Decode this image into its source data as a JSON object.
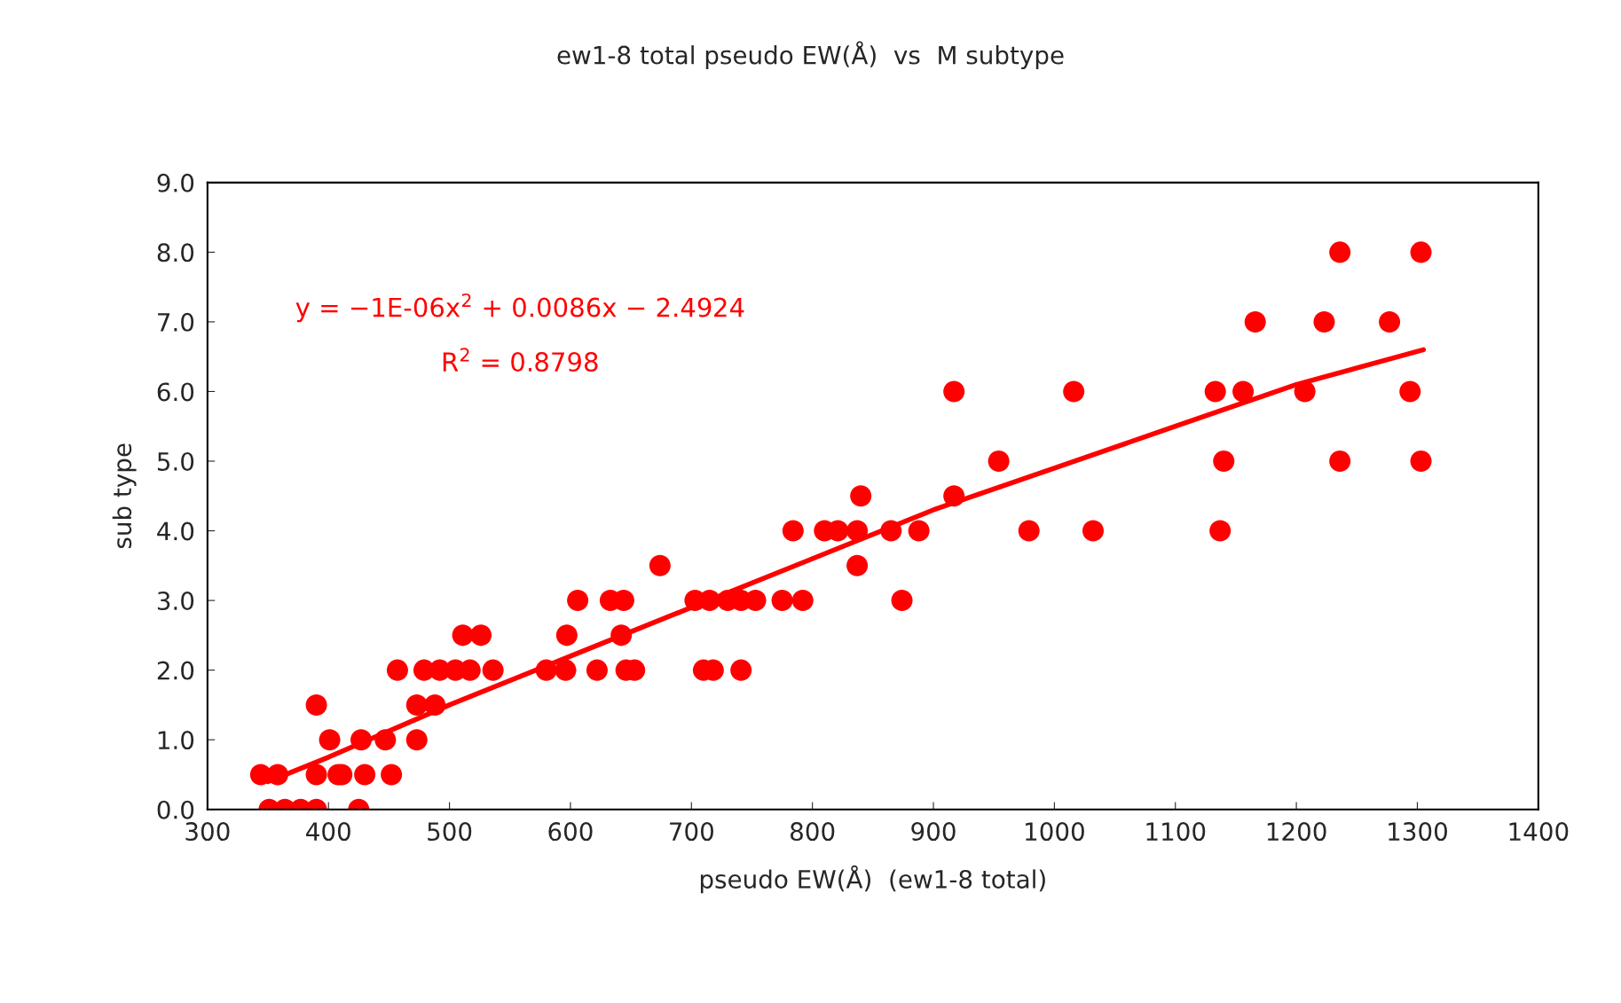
{
  "chart_data": {
    "type": "scatter",
    "title": "ew1-8 total pseudo EW(Å)  vs  M subtype",
    "xlabel": "pseudo EW(Å)  (ew1-8 total)",
    "ylabel": "sub type",
    "xlim": [
      300,
      1400
    ],
    "xticks": [
      300,
      400,
      500,
      600,
      700,
      800,
      900,
      1000,
      1100,
      1200,
      1300,
      1400
    ],
    "ylim": [
      0,
      9
    ],
    "yticks": [
      {
        "value": 0,
        "label": "0.0"
      },
      {
        "value": 1,
        "label": "1.0"
      },
      {
        "value": 2,
        "label": "2.0"
      },
      {
        "value": 3,
        "label": "3.0"
      },
      {
        "value": 4,
        "label": "4.0"
      },
      {
        "value": 5,
        "label": "5.0"
      },
      {
        "value": 6,
        "label": "6.0"
      },
      {
        "value": 7,
        "label": "7.0"
      },
      {
        "value": 8,
        "label": "8.0"
      },
      {
        "value": 9,
        "label": "9.0"
      }
    ],
    "grid": false,
    "legend": false,
    "marker": "circle",
    "annotations": [
      "y = −1E-06x$^{2}$ + 0.0086x − 2.4924",
      "R$^{2}$ = 0.8798"
    ],
    "series": [
      {
        "color": "#ff0000",
        "x": [
          351,
          364,
          377,
          390,
          425,
          344,
          358,
          390,
          408,
          411,
          430,
          452,
          401,
          427,
          447,
          473,
          390,
          473,
          488,
          457,
          479,
          492,
          505,
          517,
          536,
          580,
          596,
          622,
          646,
          653,
          710,
          718,
          741,
          511,
          526,
          597,
          642,
          606,
          633,
          644,
          703,
          715,
          730,
          741,
          753,
          775,
          792,
          874,
          674,
          837,
          784,
          810,
          821,
          837,
          865,
          888,
          979,
          1032,
          1137,
          840,
          917,
          954,
          1140,
          1236,
          1303,
          917,
          1016,
          1133,
          1156,
          1207,
          1294,
          1166,
          1223,
          1277,
          1236,
          1303
        ],
        "values": [
          0,
          0,
          0,
          0,
          0,
          0.5,
          0.5,
          0.5,
          0.5,
          0.5,
          0.5,
          0.5,
          1,
          1,
          1,
          1,
          1.5,
          1.5,
          1.5,
          2,
          2,
          2,
          2,
          2,
          2,
          2,
          2,
          2,
          2,
          2,
          2,
          2,
          2,
          2.5,
          2.5,
          2.5,
          2.5,
          3,
          3,
          3,
          3,
          3,
          3,
          3,
          3,
          3,
          3,
          3,
          3.5,
          3.5,
          4,
          4,
          4,
          4,
          4,
          4,
          4,
          4,
          4,
          4.5,
          4.5,
          5,
          5,
          5,
          5,
          6,
          6,
          6,
          6,
          6,
          6,
          7,
          7,
          7,
          8,
          8
        ]
      },
      {
        "type": "line",
        "color": "#ff0000",
        "marker": "none",
        "x": [
          350,
          400,
          500,
          600,
          700,
          800,
          900,
          1000,
          1100,
          1200,
          1305
        ],
        "values": [
          0.4,
          0.75,
          1.5,
          2.2,
          2.9,
          3.6,
          4.3,
          4.9,
          5.5,
          6.1,
          6.6
        ]
      }
    ]
  }
}
